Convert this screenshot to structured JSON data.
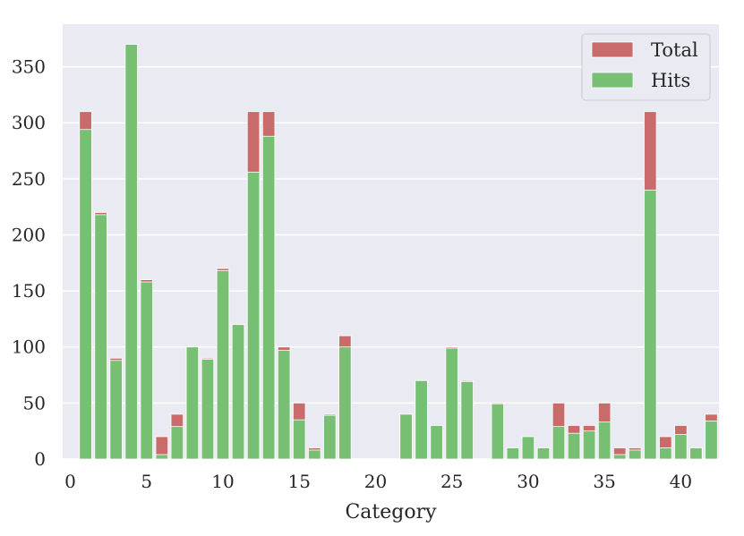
{
  "chart_data": {
    "type": "bar",
    "xlabel": "Category",
    "ylabel": "",
    "xlim": [
      -0.5,
      42.5
    ],
    "ylim": [
      0,
      388
    ],
    "xticks": [
      0,
      5,
      10,
      15,
      20,
      25,
      30,
      35,
      40
    ],
    "yticks": [
      0,
      50,
      100,
      150,
      200,
      250,
      300,
      350
    ],
    "grid": true,
    "legend_position": "top-right",
    "colors": {
      "background": "#eaeaf2",
      "grid": "#ffffff",
      "Total": "#c96b6b",
      "Hits": "#77bf72"
    },
    "categories": [
      1,
      2,
      3,
      4,
      5,
      6,
      7,
      8,
      9,
      10,
      11,
      12,
      13,
      14,
      15,
      16,
      17,
      18,
      19,
      20,
      21,
      22,
      23,
      24,
      25,
      26,
      27,
      28,
      29,
      30,
      31,
      32,
      33,
      34,
      35,
      36,
      37,
      38,
      39,
      40,
      41,
      42
    ],
    "series": [
      {
        "name": "Total",
        "values": [
          310,
          220,
          90,
          370,
          160,
          20,
          40,
          100,
          90,
          170,
          120,
          310,
          310,
          100,
          50,
          10,
          40,
          110,
          0,
          0,
          0,
          40,
          70,
          30,
          100,
          70,
          0,
          50,
          10,
          20,
          10,
          50,
          30,
          30,
          50,
          10,
          10,
          310,
          20,
          30,
          10,
          40
        ]
      },
      {
        "name": "Hits",
        "values": [
          294,
          218,
          88,
          370,
          158,
          4,
          29,
          100,
          89,
          168,
          120,
          256,
          288,
          97,
          35,
          8,
          39,
          100,
          0,
          0,
          0,
          40,
          70,
          30,
          99,
          69,
          0,
          49,
          10,
          20,
          10,
          29,
          23,
          25,
          33,
          4,
          8,
          240,
          10,
          22,
          10,
          34
        ]
      }
    ]
  }
}
